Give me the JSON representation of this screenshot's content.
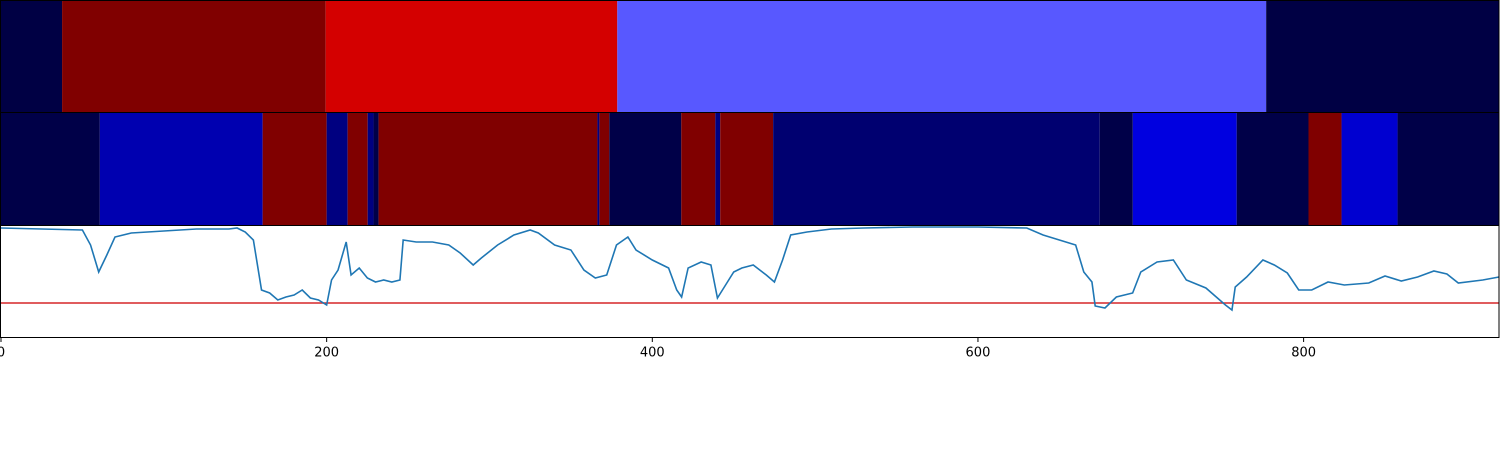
{
  "chart_data": [
    {
      "type": "segments",
      "xlim": [
        0,
        920
      ],
      "segments": [
        {
          "start": 0,
          "end": 37.5,
          "color": "#000044"
        },
        {
          "start": 37.5,
          "end": 199.4,
          "color": "#800000"
        },
        {
          "start": 199.4,
          "end": 378.5,
          "color": "#d40000"
        },
        {
          "start": 378.5,
          "end": 777,
          "color": "#5858ff"
        },
        {
          "start": 777,
          "end": 920,
          "color": "#000044"
        }
      ]
    },
    {
      "type": "segments",
      "xlim": [
        0,
        920
      ],
      "segments": [
        {
          "start": 0,
          "end": 60.7,
          "color": "#000048"
        },
        {
          "start": 60.7,
          "end": 160.7,
          "color": "#0000b0"
        },
        {
          "start": 160.7,
          "end": 200,
          "color": "#800000"
        },
        {
          "start": 200,
          "end": 212.9,
          "color": "#000080"
        },
        {
          "start": 212.9,
          "end": 225.2,
          "color": "#800000"
        },
        {
          "start": 225.2,
          "end": 228.8,
          "color": "#000080"
        },
        {
          "start": 228.8,
          "end": 231.9,
          "color": "#000048"
        },
        {
          "start": 231.9,
          "end": 366.3,
          "color": "#800000"
        },
        {
          "start": 366.3,
          "end": 367.5,
          "color": "#000080"
        },
        {
          "start": 367.5,
          "end": 373.6,
          "color": "#800000"
        },
        {
          "start": 373.6,
          "end": 417.8,
          "color": "#000048"
        },
        {
          "start": 417.8,
          "end": 438.7,
          "color": "#800000"
        },
        {
          "start": 438.7,
          "end": 441.7,
          "color": "#000080"
        },
        {
          "start": 441.7,
          "end": 474.2,
          "color": "#800000"
        },
        {
          "start": 474.2,
          "end": 674.8,
          "color": "#000070"
        },
        {
          "start": 674.8,
          "end": 695.1,
          "color": "#000048"
        },
        {
          "start": 695.1,
          "end": 758.9,
          "color": "#0000e0"
        },
        {
          "start": 758.9,
          "end": 803,
          "color": "#000048"
        },
        {
          "start": 803,
          "end": 823.3,
          "color": "#800000"
        },
        {
          "start": 823.3,
          "end": 857.7,
          "color": "#0000d0"
        },
        {
          "start": 857.7,
          "end": 920,
          "color": "#000048"
        }
      ]
    },
    {
      "type": "line",
      "xlim": [
        0,
        920
      ],
      "ylim": [
        0,
        111
      ],
      "xticks": [
        0,
        200,
        400,
        600,
        800
      ],
      "threshold": {
        "value": 34,
        "color": "#d62728"
      },
      "series": [
        {
          "color": "#1f77b4",
          "x": [
            0,
            50,
            55,
            60,
            65,
            70,
            80,
            100,
            120,
            140,
            145,
            150,
            155,
            160,
            165,
            170,
            175,
            180,
            185,
            190,
            195,
            200,
            203,
            207,
            212,
            215,
            220,
            225,
            230,
            235,
            240,
            245,
            247,
            255,
            265,
            275,
            282,
            290,
            295,
            305,
            315,
            325,
            330,
            340,
            350,
            358,
            365,
            372,
            378,
            385,
            390,
            400,
            410,
            415,
            418,
            422,
            430,
            436,
            440,
            445,
            450,
            455,
            462,
            470,
            475,
            480,
            485,
            495,
            510,
            530,
            560,
            600,
            630,
            640,
            650,
            660,
            665,
            670,
            672,
            678,
            685,
            695,
            700,
            710,
            720,
            728,
            740,
            752,
            756,
            758,
            765,
            775,
            782,
            790,
            797,
            805,
            815,
            825,
            840,
            850,
            860,
            870,
            880,
            888,
            895,
            910,
            920
          ],
          "values": [
            109,
            107,
            92,
            65,
            82,
            100,
            104,
            106,
            108,
            108,
            109,
            105,
            97,
            47,
            44,
            37,
            40,
            42,
            47,
            39,
            37,
            32,
            57,
            67,
            95,
            62,
            69,
            59,
            55,
            57,
            55,
            57,
            97,
            95,
            95,
            92,
            84,
            72,
            79,
            92,
            102,
            107,
            104,
            92,
            87,
            67,
            59,
            62,
            92,
            100,
            87,
            77,
            69,
            47,
            40,
            69,
            75,
            72,
            39,
            52,
            65,
            69,
            72,
            62,
            55,
            77,
            102,
            105,
            108,
            109,
            110,
            110,
            109,
            102,
            97,
            92,
            65,
            55,
            31,
            29,
            40,
            44,
            65,
            75,
            77,
            57,
            49,
            32,
            27,
            50,
            60,
            77,
            72,
            64,
            47,
            47,
            55,
            52,
            54,
            61,
            56,
            60,
            66,
            63,
            54,
            57,
            60
          ]
        }
      ]
    }
  ]
}
